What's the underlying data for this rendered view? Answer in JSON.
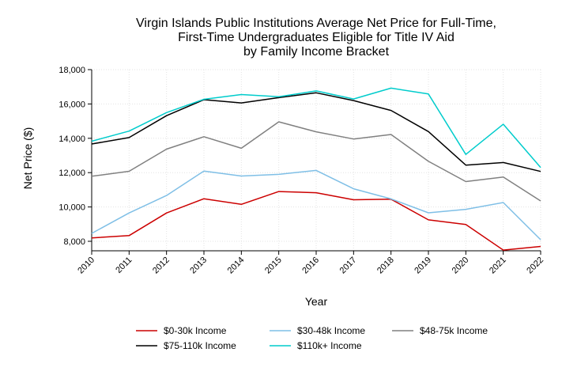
{
  "chart_data": {
    "type": "line",
    "title": [
      "Virgin Islands Public Institutions Average Net Price for Full-Time,",
      "First-Time Undergraduates Eligible for Title IV Aid",
      "by Family Income Bracket"
    ],
    "xlabel": "Year",
    "ylabel": "Net Price ($)",
    "x": [
      "2010",
      "2011",
      "2012",
      "2013",
      "2014",
      "2015",
      "2016",
      "2017",
      "2018",
      "2019",
      "2020",
      "2021",
      "2022"
    ],
    "ylim": [
      7400,
      18000
    ],
    "yticks": [
      8000,
      10000,
      12000,
      14000,
      16000,
      18000
    ],
    "ytick_labels": [
      "8,000",
      "10,000",
      "12,000",
      "14,000",
      "16,000",
      "18,000"
    ],
    "grid": true,
    "legend_position": "bottom",
    "series": [
      {
        "name": "$0-30k Income",
        "color": "#cc0000",
        "values": [
          8200,
          8330,
          9650,
          10480,
          10150,
          10900,
          10830,
          10420,
          10450,
          9250,
          8980,
          7490,
          7700
        ]
      },
      {
        "name": "$30-48k Income",
        "color": "#7fbfe6",
        "values": [
          8460,
          9650,
          10670,
          12090,
          11800,
          11900,
          12130,
          11060,
          10470,
          9660,
          9860,
          10260,
          8090
        ]
      },
      {
        "name": "$48-75k Income",
        "color": "#808080",
        "values": [
          11790,
          12080,
          13370,
          14090,
          13420,
          14960,
          14380,
          13960,
          14220,
          12660,
          11480,
          11740,
          10350
        ]
      },
      {
        "name": "$75-110k Income",
        "color": "#000000",
        "values": [
          13670,
          14040,
          15320,
          16250,
          16060,
          16370,
          16650,
          16200,
          15620,
          14390,
          12440,
          12590,
          12070
        ]
      },
      {
        "name": "$110k+ Income",
        "color": "#00cccc",
        "values": [
          13830,
          14420,
          15500,
          16270,
          16550,
          16420,
          16760,
          16290,
          16920,
          16580,
          13060,
          14820,
          12300
        ]
      }
    ]
  }
}
